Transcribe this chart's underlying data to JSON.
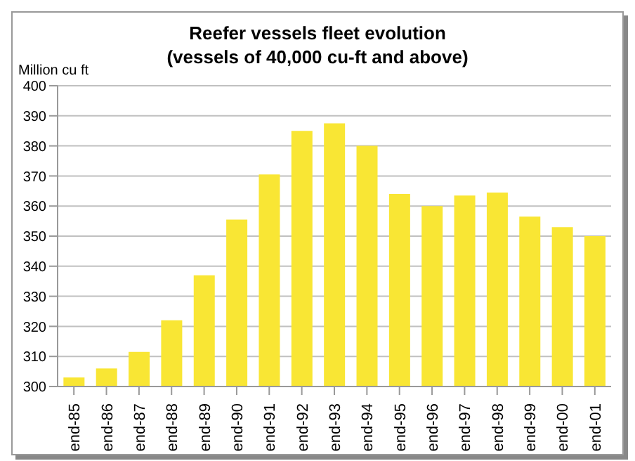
{
  "chart_data": {
    "type": "bar",
    "title": "Reefer vessels fleet evolution",
    "subtitle": "(vessels of 40,000 cu-ft and above)",
    "ylabel": "Million cu ft",
    "categories": [
      "end-85",
      "end-86",
      "end-87",
      "end-88",
      "end-89",
      "end-90",
      "end-91",
      "end-92",
      "end-93",
      "end-94",
      "end-95",
      "end-96",
      "end-97",
      "end-98",
      "end-99",
      "end-00",
      "end-01"
    ],
    "values": [
      303,
      306,
      311.5,
      322,
      337,
      355.5,
      370.5,
      385,
      387.5,
      380,
      364,
      360,
      363.5,
      364.5,
      356.5,
      353,
      350
    ],
    "color": "#f9e634",
    "ylim": [
      300,
      400
    ],
    "yticks": [
      300,
      310,
      320,
      330,
      340,
      350,
      360,
      370,
      380,
      390,
      400
    ],
    "grid": "y",
    "legend": false
  }
}
